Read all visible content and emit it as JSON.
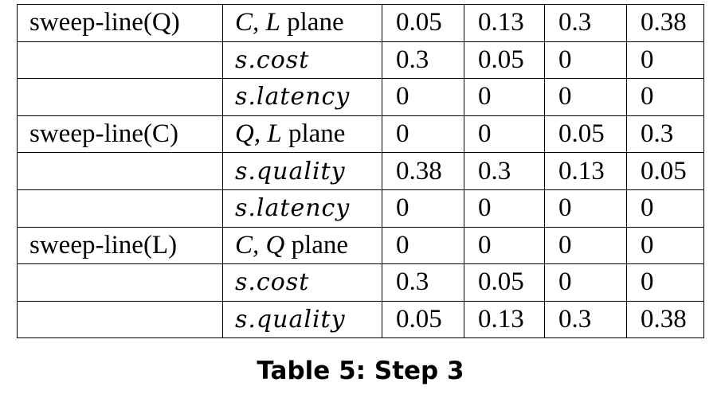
{
  "table": {
    "caption": "Table 5: Step 3",
    "rows": [
      {
        "group": "sweep-line(Q)",
        "label_math": "C, L",
        "label_text": " plane",
        "values": [
          "0.05",
          "0.13",
          "0.3",
          "0.38"
        ]
      },
      {
        "group": "",
        "label_math": "s.cost",
        "label_text": "",
        "values": [
          "0.3",
          "0.05",
          "0",
          "0"
        ]
      },
      {
        "group": "",
        "label_math": "s.latency",
        "label_text": "",
        "values": [
          "0",
          "0",
          "0",
          "0"
        ]
      },
      {
        "group": "sweep-line(C)",
        "label_math": "Q, L",
        "label_text": " plane",
        "values": [
          "0",
          "0",
          "0.05",
          "0.3"
        ]
      },
      {
        "group": "",
        "label_math": "s.quality",
        "label_text": "",
        "values": [
          "0.38",
          "0.3",
          "0.13",
          "0.05"
        ]
      },
      {
        "group": "",
        "label_math": "s.latency",
        "label_text": "",
        "values": [
          "0",
          "0",
          "0",
          "0"
        ]
      },
      {
        "group": "sweep-line(L)",
        "label_math": "C, Q",
        "label_text": " plane",
        "values": [
          "0",
          "0",
          "0",
          "0"
        ]
      },
      {
        "group": "",
        "label_math": "s.cost",
        "label_text": "",
        "values": [
          "0.3",
          "0.05",
          "0",
          "0"
        ]
      },
      {
        "group": "",
        "label_math": "s.quality",
        "label_text": "",
        "values": [
          "0.05",
          "0.13",
          "0.3",
          "0.38"
        ]
      }
    ]
  }
}
